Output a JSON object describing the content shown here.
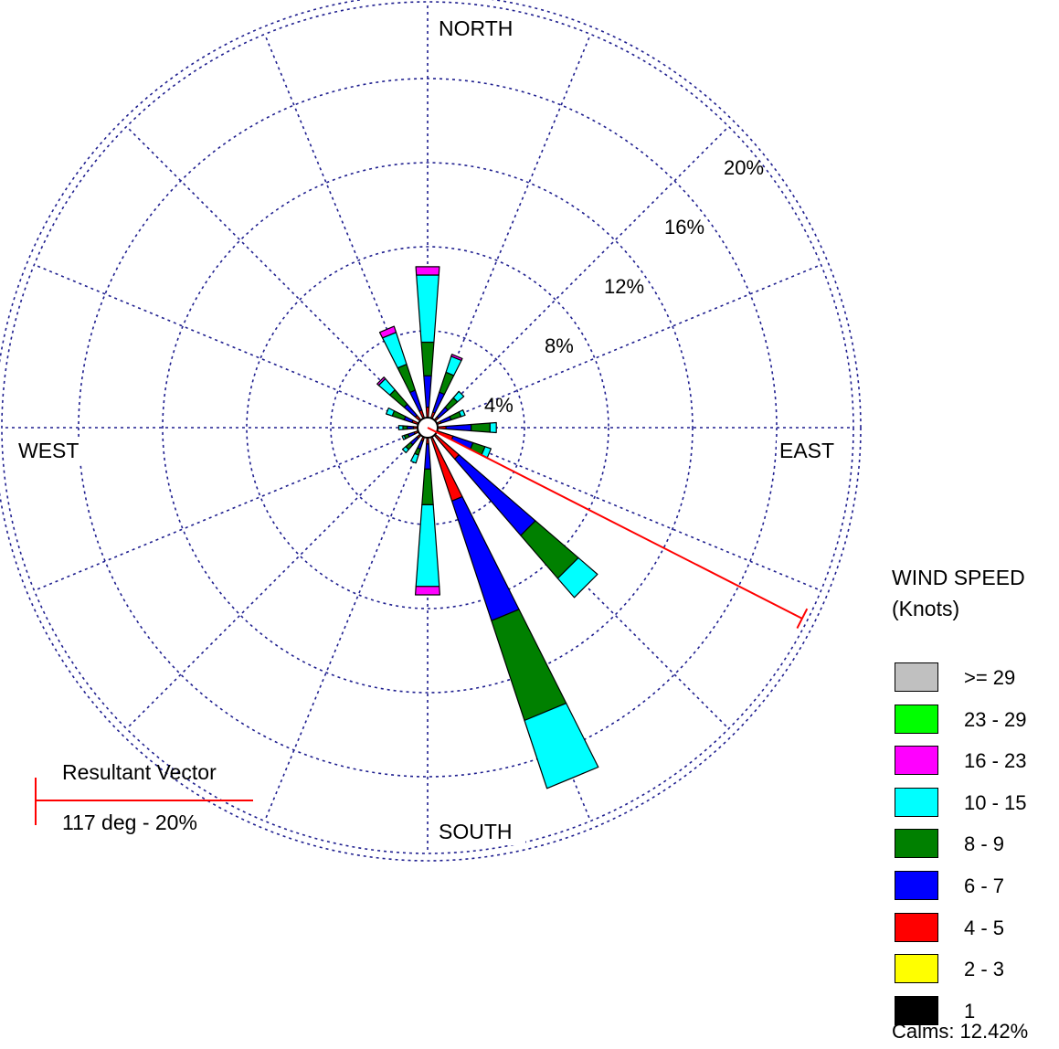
{
  "chart_data": {
    "type": "wind-rose",
    "directions_deg": [
      0,
      22.5,
      45,
      67.5,
      90,
      112.5,
      135,
      157.5,
      180,
      202.5,
      225,
      247.5,
      270,
      292.5,
      315,
      337.5
    ],
    "compass_labels": {
      "north": "NORTH",
      "east": "EAST",
      "south": "SOUTH",
      "west": "WEST"
    },
    "ring_labels": [
      "4%",
      "8%",
      "12%",
      "16%",
      "20%"
    ],
    "r_max_percent": 20,
    "legend_title": [
      "WIND SPEED",
      "(Knots)"
    ],
    "speed_classes": [
      {
        "label": ">= 29",
        "color": "#c0c0c0"
      },
      {
        "label": "23 - 29",
        "color": "#00ff00"
      },
      {
        "label": "16 - 23",
        "color": "#ff00ff"
      },
      {
        "label": "10 - 15",
        "color": "#00ffff"
      },
      {
        "label": "8 - 9",
        "color": "#008000"
      },
      {
        "label": "6 - 7",
        "color": "#0000ff"
      },
      {
        "label": "4 - 5",
        "color": "#ff0000"
      },
      {
        "label": "2 - 3",
        "color": "#ffff00"
      },
      {
        "label": "1",
        "color": "#000000"
      }
    ],
    "series": [
      {
        "speed": "4 - 5",
        "values": [
          0.5,
          0.3,
          0.2,
          0.2,
          0.4,
          0.8,
          1.5,
          3.2,
          0.3,
          0.2,
          0.2,
          0.2,
          0.2,
          0.3,
          0.3,
          0.4
        ]
      },
      {
        "speed": "6 - 7",
        "values": [
          1.5,
          1.0,
          0.6,
          0.5,
          1.2,
          1.0,
          4.8,
          6.0,
          1.2,
          0.4,
          0.4,
          0.3,
          0.3,
          0.4,
          0.7,
          1.0
        ]
      },
      {
        "speed": "8 - 9",
        "values": [
          1.6,
          1.0,
          0.6,
          0.5,
          0.9,
          0.6,
          2.7,
          5.0,
          1.7,
          0.3,
          0.3,
          0.2,
          0.2,
          0.6,
          0.9,
          1.3
        ]
      },
      {
        "speed": "10 - 15",
        "values": [
          3.2,
          0.8,
          0.4,
          0.2,
          0.3,
          0.3,
          1.2,
          3.4,
          3.9,
          0.4,
          0.2,
          0.1,
          0.2,
          0.3,
          0.7,
          1.6
        ]
      },
      {
        "speed": "16 - 23",
        "values": [
          0.4,
          0.1,
          0.0,
          0.0,
          0.0,
          0.0,
          0.0,
          0.0,
          0.4,
          0.0,
          0.0,
          0.0,
          0.0,
          0.0,
          0.1,
          0.3
        ]
      }
    ],
    "resultant_vector": {
      "direction_deg": 117,
      "percent": 20,
      "label": "Resultant Vector",
      "value_label": "117 deg - 20%",
      "color": "#ff0000"
    },
    "calms": "Calms: 12.42%"
  }
}
